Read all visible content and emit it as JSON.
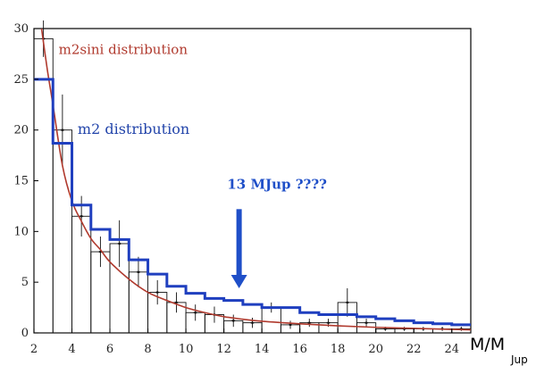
{
  "chart_data": {
    "type": "bar",
    "xlim": [
      2,
      25
    ],
    "ylim": [
      0,
      30
    ],
    "x_ticks": [
      2,
      4,
      6,
      8,
      10,
      12,
      14,
      16,
      18,
      20,
      22,
      24
    ],
    "y_ticks": [
      0,
      5,
      10,
      15,
      20,
      25,
      30
    ],
    "xlabel": "M/M",
    "xlabel_sub": "Jup",
    "bins": [
      {
        "x0": 2,
        "x1": 3,
        "y": 29.0,
        "err": 1.8
      },
      {
        "x0": 3,
        "x1": 4,
        "y": 20.0,
        "err": 3.5
      },
      {
        "x0": 4,
        "x1": 5,
        "y": 11.5,
        "err": 2.0
      },
      {
        "x0": 5,
        "x1": 6,
        "y": 8.0,
        "err": 1.5
      },
      {
        "x0": 6,
        "x1": 7,
        "y": 8.8,
        "err": 2.3
      },
      {
        "x0": 7,
        "x1": 8,
        "y": 6.0,
        "err": 1.5
      },
      {
        "x0": 8,
        "x1": 9,
        "y": 4.0,
        "err": 1.2
      },
      {
        "x0": 9,
        "x1": 10,
        "y": 3.0,
        "err": 1.0
      },
      {
        "x0": 10,
        "x1": 11,
        "y": 2.0,
        "err": 0.8
      },
      {
        "x0": 11,
        "x1": 12,
        "y": 1.8,
        "err": 0.8
      },
      {
        "x0": 12,
        "x1": 13,
        "y": 1.2,
        "err": 0.6
      },
      {
        "x0": 13,
        "x1": 14,
        "y": 1.0,
        "err": 0.5
      },
      {
        "x0": 14,
        "x1": 15,
        "y": 2.5,
        "err": 0.5
      },
      {
        "x0": 15,
        "x1": 16,
        "y": 0.8,
        "err": 0.4
      },
      {
        "x0": 16,
        "x1": 17,
        "y": 1.0,
        "err": 0.4
      },
      {
        "x0": 17,
        "x1": 18,
        "y": 1.0,
        "err": 0.4
      },
      {
        "x0": 18,
        "x1": 19,
        "y": 3.0,
        "err": 1.4
      },
      {
        "x0": 19,
        "x1": 20,
        "y": 1.0,
        "err": 0.4
      },
      {
        "x0": 20,
        "x1": 21,
        "y": 0.4,
        "err": 0.2
      },
      {
        "x0": 21,
        "x1": 22,
        "y": 0.4,
        "err": 0.2
      },
      {
        "x0": 22,
        "x1": 23,
        "y": 0.4,
        "err": 0.2
      },
      {
        "x0": 23,
        "x1": 24,
        "y": 0.4,
        "err": 0.2
      },
      {
        "x0": 24,
        "x1": 25,
        "y": 0.4,
        "err": 0.2
      }
    ],
    "series": [
      {
        "name": "m2sini distribution",
        "kind": "curve",
        "color": "#b03a2e",
        "x": [
          2.4,
          2.7,
          3.0,
          3.5,
          4.0,
          4.5,
          5.0,
          5.5,
          6.0,
          7.0,
          8.0,
          9.0,
          10.0,
          11.0,
          12.0,
          13.0,
          14.0,
          16.0,
          18.0,
          20.0,
          22.0,
          24.0,
          25.0
        ],
        "y": [
          30.0,
          26.0,
          22.5,
          16.5,
          13.0,
          11.0,
          9.3,
          8.2,
          7.0,
          5.3,
          4.0,
          3.2,
          2.5,
          2.0,
          1.6,
          1.35,
          1.15,
          0.9,
          0.7,
          0.55,
          0.45,
          0.35,
          0.3
        ]
      },
      {
        "name": "m2 distribution",
        "kind": "step",
        "color": "#1f3fbf",
        "edges": [
          2,
          3,
          4,
          5,
          6,
          7,
          8,
          9,
          10,
          11,
          12,
          13,
          14,
          15,
          16,
          17,
          18,
          19,
          20,
          21,
          22,
          23,
          24,
          25
        ],
        "values": [
          25.0,
          18.7,
          12.6,
          10.2,
          9.2,
          7.2,
          5.8,
          4.6,
          3.9,
          3.4,
          3.2,
          2.8,
          2.5,
          2.5,
          2.0,
          1.8,
          1.8,
          1.6,
          1.4,
          1.2,
          1.0,
          0.9,
          0.8
        ]
      }
    ],
    "annotations": [
      {
        "id": "red-label",
        "text": "m2sini distribution",
        "x": 3.3,
        "y": 27.5
      },
      {
        "id": "blue-label",
        "text": "m2 distribution",
        "x": 4.3,
        "y": 19.6
      },
      {
        "id": "arrow-label",
        "text": "13 MJup ????",
        "x": 14.8,
        "y": 14.2
      },
      {
        "id": "arrow",
        "x": 12.8,
        "y_start": 12.2,
        "y_end": 4.4,
        "color": "#1f4fc8"
      }
    ]
  }
}
